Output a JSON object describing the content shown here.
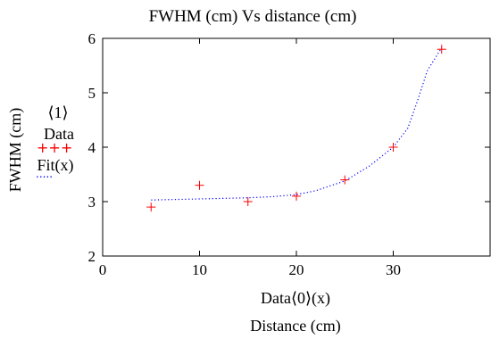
{
  "chart_data": {
    "type": "scatter",
    "title": "FWHM (cm) Vs distance (cm)",
    "xlabel": "Distance (cm)",
    "ylabel": "FWHM (cm)",
    "x_series_label": "Data⟨0⟩(x)",
    "y_series_label": "⟨1⟩",
    "xlim": [
      0,
      40
    ],
    "ylim": [
      2,
      6
    ],
    "x_ticks": [
      0,
      10,
      20,
      30
    ],
    "y_ticks": [
      2,
      3,
      4,
      5,
      6
    ],
    "grid": false,
    "legend_position": "left",
    "series": [
      {
        "name": "Data",
        "style": "markers",
        "marker": "plus",
        "color": "#ff0000",
        "x": [
          5,
          10,
          15,
          20,
          25,
          30,
          35
        ],
        "y": [
          2.9,
          3.3,
          3.0,
          3.1,
          3.4,
          4.0,
          5.8
        ]
      },
      {
        "name": "Fit(x)",
        "style": "dotted-line",
        "color": "#0000ff",
        "x": [
          5,
          10,
          15,
          17.5,
          20,
          22,
          25,
          27.5,
          30,
          31.5,
          32.5,
          33.5,
          35
        ],
        "y": [
          3.03,
          3.05,
          3.07,
          3.09,
          3.13,
          3.2,
          3.38,
          3.65,
          4.0,
          4.35,
          4.85,
          5.4,
          5.83
        ]
      }
    ],
    "legend_symbols": {
      "data": "+++",
      "fit": "....."
    }
  }
}
